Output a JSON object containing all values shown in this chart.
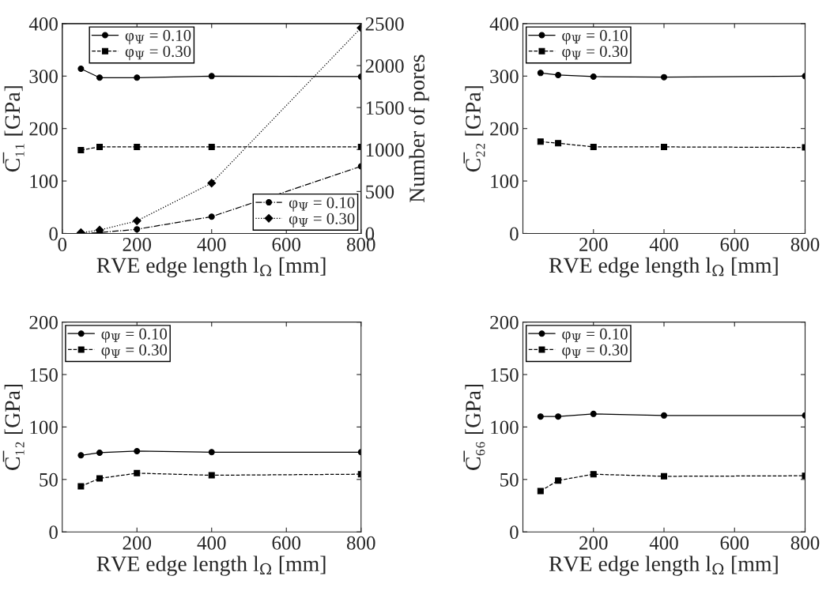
{
  "chart_data": [
    {
      "type": "line",
      "x": [
        50,
        100,
        200,
        400,
        800
      ],
      "xlabel": "RVE edge length l$_{Ω}$ [mm]",
      "ylabel": "C̅₁₁ [GPa]",
      "y2label": "Number of pores",
      "xlim": [
        0,
        800
      ],
      "xticks": [
        0,
        200,
        400,
        600,
        800
      ],
      "ylim": [
        0,
        400
      ],
      "yticks": [
        0,
        100,
        200,
        300,
        400
      ],
      "y2lim": [
        0,
        2500
      ],
      "y2ticks": [
        0,
        500,
        1000,
        1500,
        2000,
        2500
      ],
      "grid": false,
      "legend": "top left",
      "series": [
        {
          "name": "φ$_{Ψ}$ = 0.10",
          "color": "#000000",
          "marker": "circle",
          "line_style": "solid",
          "values": [
            314,
            297,
            297,
            300,
            299
          ]
        },
        {
          "name": "φ$_{Ψ}$ = 0.30",
          "color": "#000000",
          "marker": "square",
          "line_style": "dashed",
          "values": [
            159,
            165,
            165,
            165,
            165
          ]
        },
        {
          "name": "φ$_{Ψ}$ = 0.10",
          "color": "#000000",
          "marker": "circle",
          "line_style": "dashdot",
          "axis": "y2",
          "values": [
            0,
            10,
            50,
            200,
            800
          ]
        },
        {
          "name": "φ$_{Ψ}$ = 0.30",
          "color": "#000000",
          "marker": "diamond",
          "line_style": "dotted",
          "axis": "y2",
          "values": [
            10,
            40,
            150,
            600,
            2450
          ]
        }
      ]
    },
    {
      "type": "line",
      "x": [
        50,
        100,
        200,
        400,
        800
      ],
      "xlabel": "RVE edge length l$_{Ω}$ [mm]",
      "ylabel": "C̅₂₂ [GPa]",
      "xlim": [
        0,
        800
      ],
      "xticks": [
        200,
        400,
        600,
        800
      ],
      "ylim": [
        0,
        400
      ],
      "yticks": [
        0,
        100,
        200,
        300,
        400
      ],
      "grid": false,
      "legend": "top left",
      "series": [
        {
          "name": "φ$_{Ψ}$ = 0.10",
          "color": "#000000",
          "marker": "circle",
          "line_style": "solid",
          "values": [
            306,
            302,
            299,
            298,
            300
          ]
        },
        {
          "name": "φ$_{Ψ}$ = 0.30",
          "color": "#000000",
          "marker": "square",
          "line_style": "dashed",
          "values": [
            175,
            172,
            165,
            165,
            164
          ]
        }
      ]
    },
    {
      "type": "line",
      "x": [
        50,
        100,
        200,
        400,
        800
      ],
      "xlabel": "RVE edge length l$_{Ω}$ [mm]",
      "ylabel": "C̅₁₂ [GPa]",
      "xlim": [
        0,
        800
      ],
      "xticks": [
        200,
        400,
        600,
        800
      ],
      "ylim": [
        0,
        200
      ],
      "yticks": [
        0,
        50,
        100,
        150,
        200
      ],
      "grid": false,
      "legend": "top left",
      "series": [
        {
          "name": "φ$_{Ψ}$ = 0.10",
          "color": "#000000",
          "marker": "circle",
          "line_style": "solid",
          "values": [
            73,
            75.5,
            77,
            76,
            76
          ]
        },
        {
          "name": "φ$_{Ψ}$ = 0.30",
          "color": "#000000",
          "marker": "square",
          "line_style": "dashed",
          "values": [
            43.5,
            51,
            56,
            54,
            55
          ]
        }
      ]
    },
    {
      "type": "line",
      "x": [
        50,
        100,
        200,
        400,
        800
      ],
      "xlabel": "RVE edge length l$_{Ω}$ [mm]",
      "ylabel": "C̅₆₆ [GPa]",
      "xlim": [
        0,
        800
      ],
      "xticks": [
        200,
        400,
        600,
        800
      ],
      "ylim": [
        0,
        200
      ],
      "yticks": [
        0,
        50,
        100,
        150,
        200
      ],
      "grid": false,
      "legend": "top left",
      "series": [
        {
          "name": "φ$_{Ψ}$ = 0.10",
          "color": "#000000",
          "marker": "circle",
          "line_style": "solid",
          "values": [
            110,
            110,
            112.5,
            111,
            111
          ]
        },
        {
          "name": "φ$_{Ψ}$ = 0.30",
          "color": "#000000",
          "marker": "square",
          "line_style": "dashed",
          "values": [
            39,
            49,
            55,
            53,
            53.5
          ]
        }
      ]
    }
  ]
}
